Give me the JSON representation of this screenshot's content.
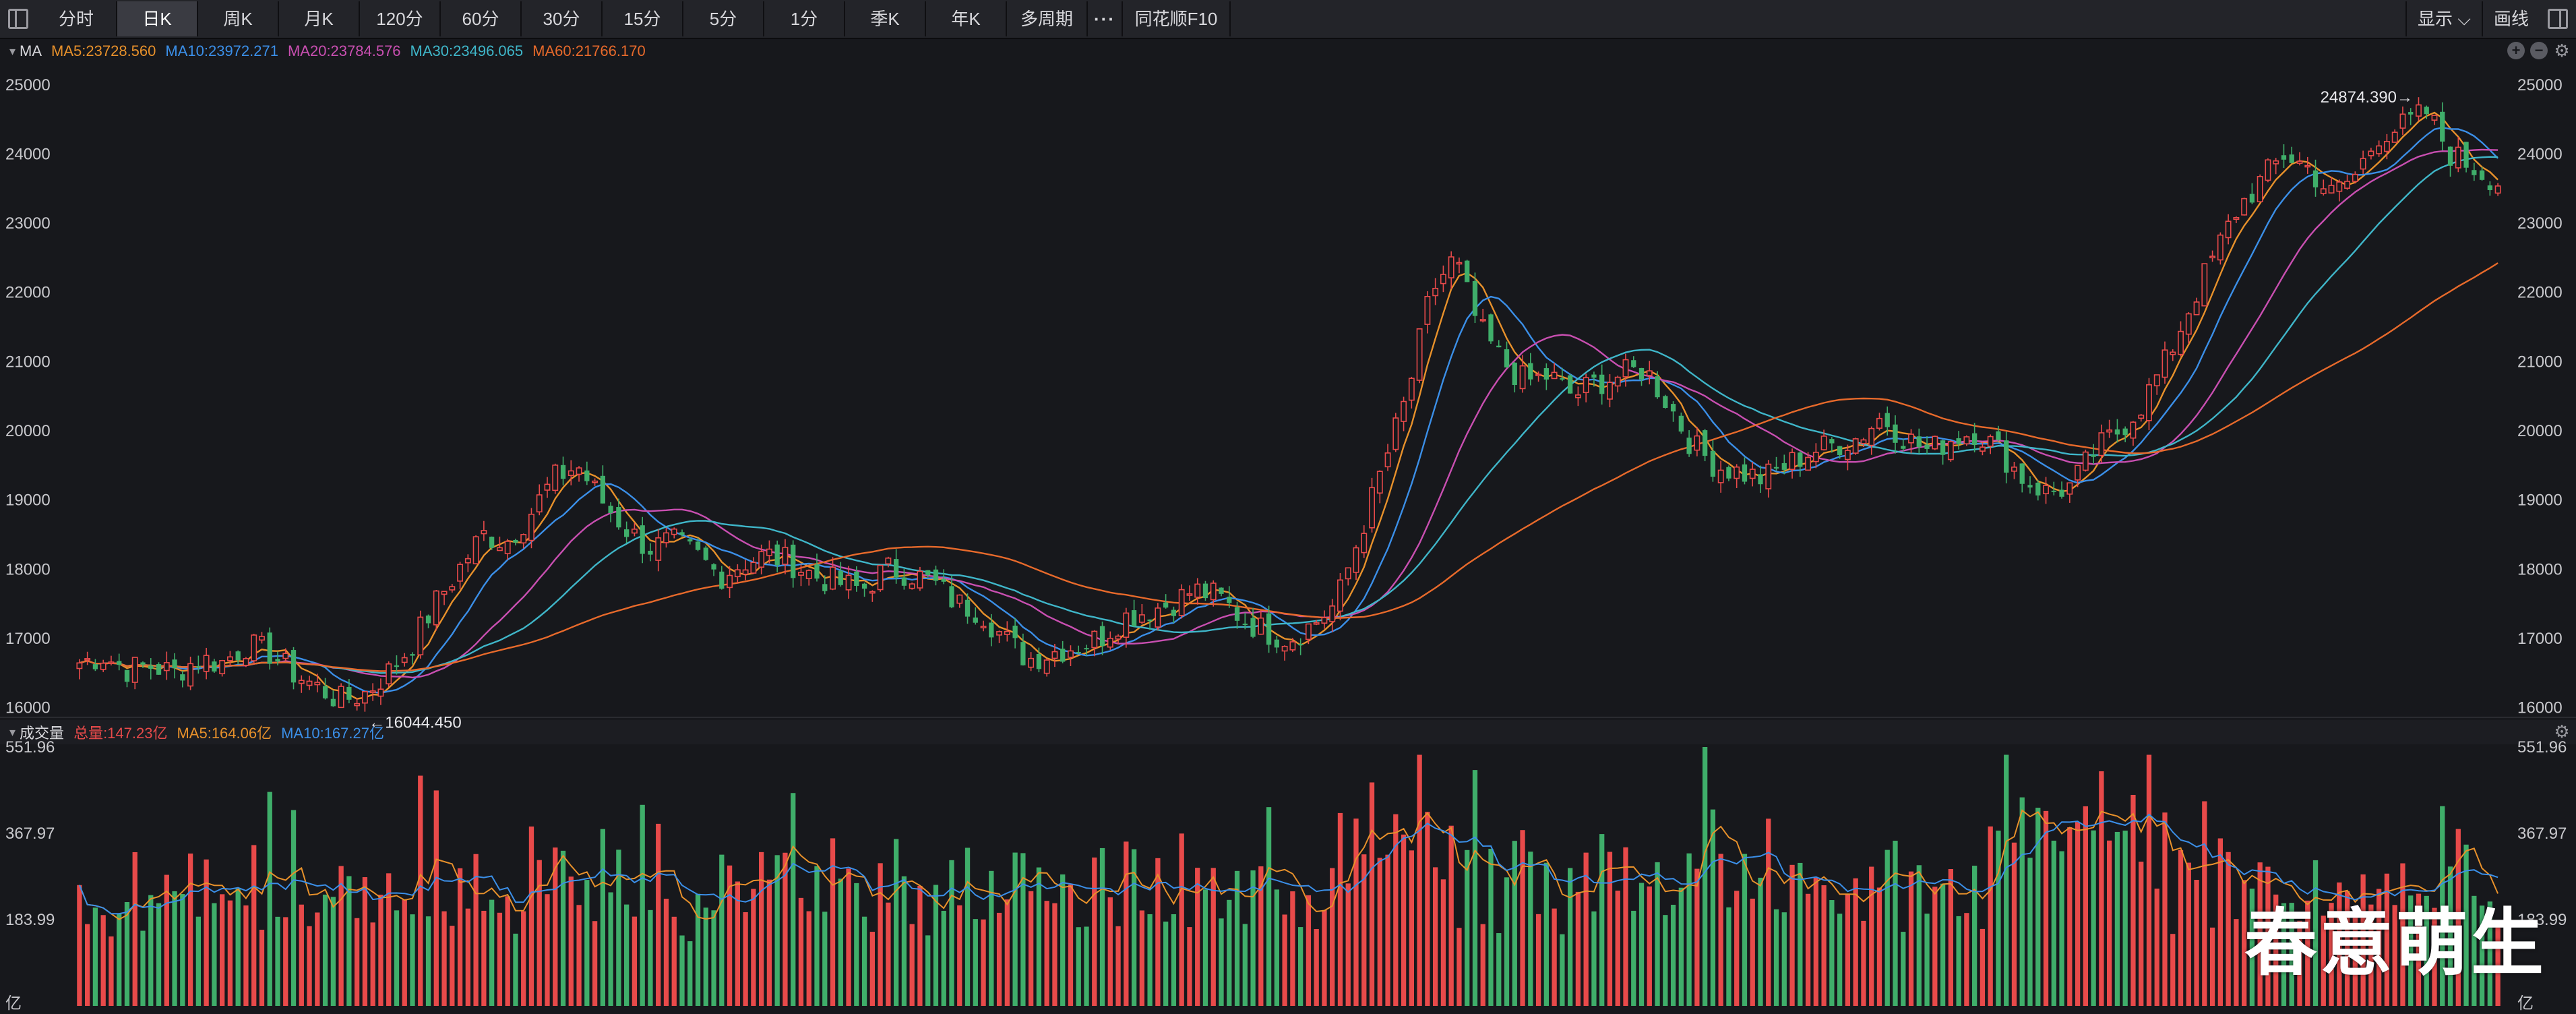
{
  "toolbar": {
    "tabs": [
      "分时",
      "日K",
      "周K",
      "月K",
      "120分",
      "60分",
      "30分",
      "15分",
      "5分",
      "1分",
      "季K",
      "年K",
      "多周期"
    ],
    "active_tab": "日K",
    "more_label": "···",
    "f10_label": "同花顺F10",
    "display_label": "显示",
    "draw_label": "画线"
  },
  "ma_legend": {
    "title": "MA",
    "items": [
      {
        "label": "MA5:23728.560",
        "color": "#e8912b"
      },
      {
        "label": "MA10:23972.271",
        "color": "#3b8fe8"
      },
      {
        "label": "MA20:23784.576",
        "color": "#c94fb1"
      },
      {
        "label": "MA30:23496.065",
        "color": "#3fb6c9"
      },
      {
        "label": "MA60:21766.170",
        "color": "#e86a2b"
      }
    ]
  },
  "vol_legend": {
    "title": "成交量",
    "items": [
      {
        "label": "总量:147.23亿",
        "color": "#e84a4a"
      },
      {
        "label": "MA5:164.06亿",
        "color": "#e8912b"
      },
      {
        "label": "MA10:167.27亿",
        "color": "#3b8fe8"
      }
    ]
  },
  "watermark": "春意萌生",
  "chart_data": [
    {
      "type": "candlestick",
      "y_ticks": [
        "25000",
        "24000",
        "23000",
        "22000",
        "21000",
        "20000",
        "19000",
        "18000",
        "17000",
        "16000"
      ],
      "ylim": [
        15850,
        25300
      ],
      "annotations": {
        "high": "24874.390",
        "low": "16044.450"
      },
      "colors": {
        "up": "#e84a4a",
        "down": "#3fae6a"
      },
      "anchors": [
        16650,
        16750,
        16550,
        16600,
        16500,
        16700,
        16650,
        16900,
        16800,
        16500,
        16300,
        16100,
        16200,
        16500,
        16900,
        17500,
        18000,
        18500,
        18400,
        18800,
        19300,
        19500,
        19000,
        18600,
        18300,
        18400,
        18200,
        17900,
        18100,
        18200,
        18100,
        17900,
        17800,
        17700,
        18000,
        17950,
        17800,
        17500,
        17400,
        17000,
        16700,
        16800,
        16900,
        17000,
        17300,
        17400,
        17500,
        17700,
        17600,
        17300,
        17100,
        17000,
        17200,
        17500,
        18500,
        19500,
        20500,
        22000,
        22500,
        21500,
        21000,
        20700,
        20800,
        20500,
        20700,
        20800,
        20900,
        20400,
        19800,
        19500,
        19400,
        19300,
        19500,
        19700,
        19800,
        19900,
        20200,
        19900,
        19700,
        19900,
        20000,
        19700,
        19300,
        19100,
        19200,
        19700,
        20000,
        20400,
        21000,
        21800,
        22500,
        23200,
        23600,
        24000,
        23800,
        23400,
        23700,
        24300,
        24400,
        24600,
        24000,
        23800,
        23600
      ]
    },
    {
      "type": "bar",
      "name": "成交量",
      "y_ticks": [
        "551.96",
        "367.97",
        "183.99",
        "亿"
      ],
      "ylim": [
        0,
        551.96
      ],
      "peak": 551.96
    }
  ]
}
